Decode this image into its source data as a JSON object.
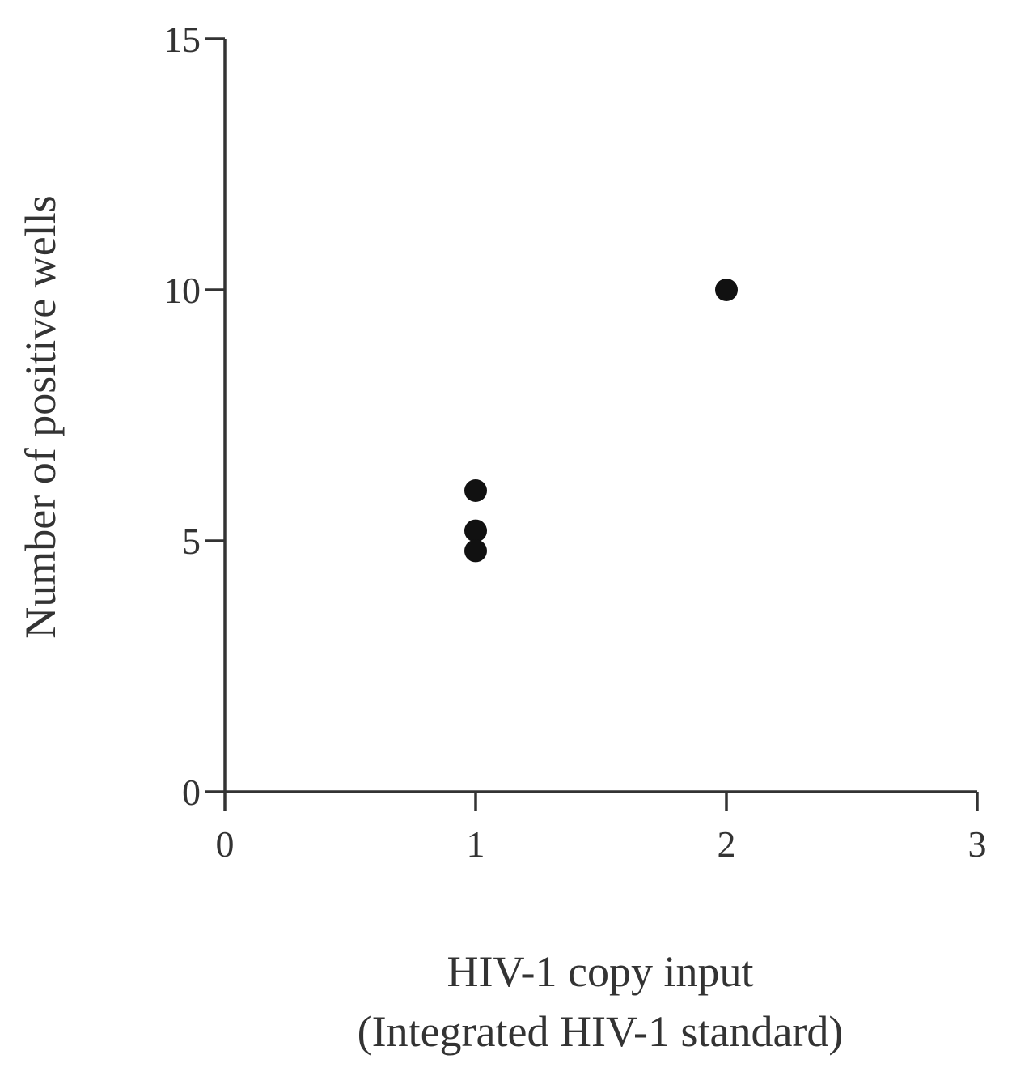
{
  "chart_data": {
    "type": "scatter",
    "title": "",
    "xlabel_lines": [
      "HIV-1 copy input",
      "(Integrated HIV-1 standard)"
    ],
    "ylabel": "Number of positive wells",
    "xlim": [
      0,
      3
    ],
    "ylim": [
      0,
      15
    ],
    "xticks": [
      "0",
      "1",
      "2",
      "3"
    ],
    "yticks": [
      "0",
      "5",
      "10",
      "15"
    ],
    "grid": false,
    "legend": "none",
    "marker_color": "#111111",
    "points": [
      {
        "x": 1,
        "y": 6
      },
      {
        "x": 1,
        "y": 5.2
      },
      {
        "x": 1,
        "y": 4.8
      },
      {
        "x": 2,
        "y": 10
      }
    ]
  }
}
